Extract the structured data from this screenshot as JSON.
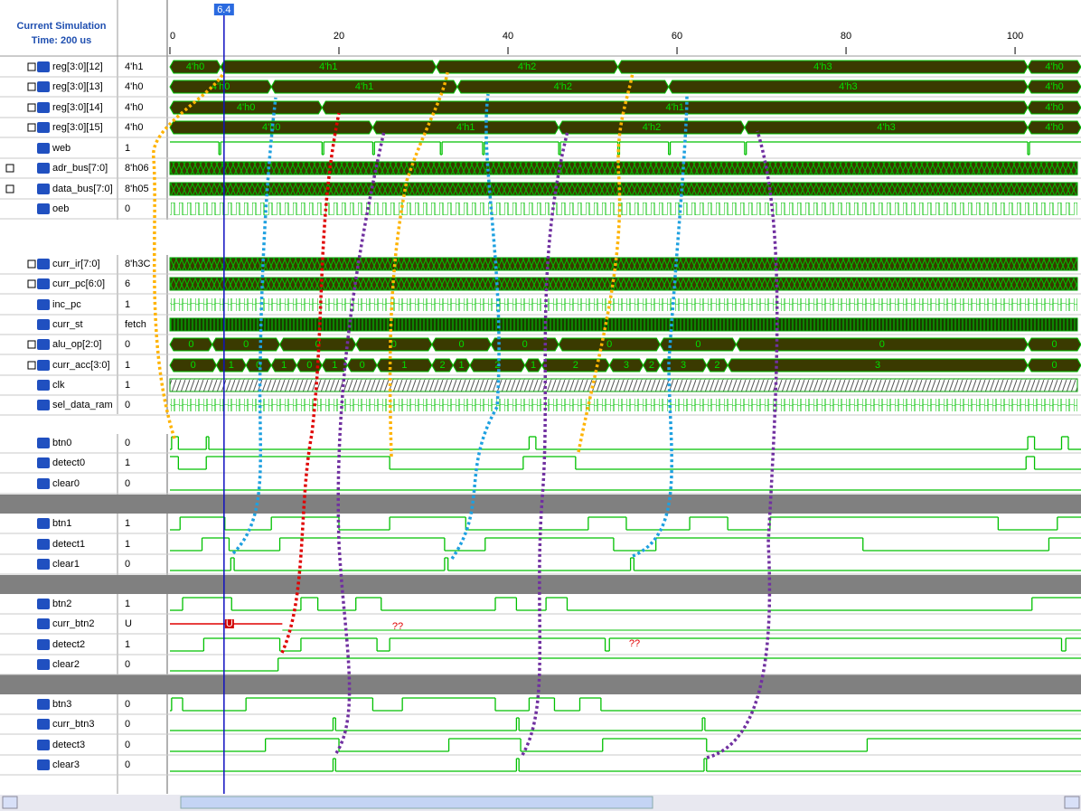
{
  "header": {
    "title": "Current Simulation",
    "time": "Time: 200 us"
  },
  "timeline": {
    "xlim": [
      0,
      107.8
    ],
    "ticks": [
      0,
      20,
      40,
      60,
      80,
      100
    ],
    "cursors": [
      6,
      6.4
    ]
  },
  "annotations": [
    "??",
    "??"
  ],
  "signals": [
    {
      "name": "reg[3:0][12]",
      "value": "4'h1",
      "kind": "bus",
      "segments": [
        {
          "start": 0,
          "label": "4'h0"
        },
        {
          "start": 6,
          "label": "4'h1"
        },
        {
          "start": 31.5,
          "label": "4'h2"
        },
        {
          "start": 53,
          "label": "4'h3"
        },
        {
          "start": 101.5,
          "label": "4'h0"
        }
      ]
    },
    {
      "name": "reg[3:0][13]",
      "value": "4'h0",
      "kind": "bus",
      "segments": [
        {
          "start": 0,
          "label": "4'h0"
        },
        {
          "start": 12,
          "label": "4'h1"
        },
        {
          "start": 34,
          "label": "4'h2"
        },
        {
          "start": 59,
          "label": "4'h3"
        },
        {
          "start": 101.5,
          "label": "4'h0"
        }
      ]
    },
    {
      "name": "reg[3:0][14]",
      "value": "4'h0",
      "kind": "bus",
      "segments": [
        {
          "start": 0,
          "label": "4'h0"
        },
        {
          "start": 18,
          "label": "4'h1"
        },
        {
          "start": 101.5,
          "label": "4'h0"
        }
      ]
    },
    {
      "name": "reg[3:0][15]",
      "value": "4'h0",
      "kind": "bus",
      "segments": [
        {
          "start": 0,
          "label": "4'h0"
        },
        {
          "start": 24,
          "label": "4'h1"
        },
        {
          "start": 46,
          "label": "4'h2"
        },
        {
          "start": 68,
          "label": "4'h3"
        },
        {
          "start": 101.5,
          "label": "4'h0"
        }
      ]
    },
    {
      "name": "web",
      "value": "1",
      "kind": "bit",
      "init": 1,
      "edges": [
        5.8,
        6,
        18,
        18.2,
        24,
        24.2,
        32,
        32.2,
        37,
        37.2,
        46,
        46.2,
        53,
        53.2,
        59,
        59.2,
        68,
        68.2,
        101.5,
        101.7
      ]
    },
    {
      "name": "adr_bus[7:0]",
      "value": "8'h06",
      "kind": "dense"
    },
    {
      "name": "data_bus[7:0]",
      "value": "8'h05",
      "kind": "dense"
    },
    {
      "name": "oeb",
      "value": "0",
      "kind": "pulse"
    },
    {
      "name": "curr_ir[7:0]",
      "value": "8'h3C",
      "kind": "dense"
    },
    {
      "name": "curr_pc[6:0]",
      "value": "6",
      "kind": "dense"
    },
    {
      "name": "inc_pc",
      "value": "1",
      "kind": "pulse"
    },
    {
      "name": "curr_st",
      "value": "fetch",
      "kind": "hatch"
    },
    {
      "name": "alu_op[2:0]",
      "value": "0",
      "kind": "bus",
      "segments": [
        {
          "start": 0,
          "label": "0"
        },
        {
          "start": 5,
          "label": "0"
        },
        {
          "start": 13,
          "label": "0"
        },
        {
          "start": 22,
          "label": "0"
        },
        {
          "start": 31,
          "label": "0"
        },
        {
          "start": 38,
          "label": "0"
        },
        {
          "start": 46,
          "label": "0"
        },
        {
          "start": 58,
          "label": "0"
        },
        {
          "start": 67,
          "label": "0"
        },
        {
          "start": 101.5,
          "label": "0"
        }
      ]
    },
    {
      "name": "curr_acc[3:0]",
      "value": "1",
      "kind": "bus",
      "segments": [
        {
          "start": 0,
          "label": "0"
        },
        {
          "start": 5.5,
          "label": "1"
        },
        {
          "start": 9,
          "label": "0"
        },
        {
          "start": 12,
          "label": "1"
        },
        {
          "start": 15,
          "label": "0"
        },
        {
          "start": 18,
          "label": "1"
        },
        {
          "start": 21,
          "label": "0"
        },
        {
          "start": 24.5,
          "label": "1"
        },
        {
          "start": 31,
          "label": "2"
        },
        {
          "start": 33.5,
          "label": "1"
        },
        {
          "start": 35.5,
          "label": "2"
        },
        {
          "start": 42,
          "label": "1"
        },
        {
          "start": 44,
          "label": "2"
        },
        {
          "start": 52,
          "label": "3"
        },
        {
          "start": 56,
          "label": "2"
        },
        {
          "start": 58,
          "label": "3"
        },
        {
          "start": 63.5,
          "label": "2"
        },
        {
          "start": 66,
          "label": "3"
        },
        {
          "start": 101.5,
          "label": "0"
        }
      ]
    },
    {
      "name": "clk",
      "value": "1",
      "kind": "hatch"
    },
    {
      "name": "sel_data_ram",
      "value": "0",
      "kind": "pulse"
    },
    {
      "name": "btn0",
      "value": "0",
      "kind": "bit",
      "init": 0,
      "edges": [
        0.2,
        1,
        4.3,
        4.6,
        42.5,
        43.3,
        101.5,
        102.3,
        105.5,
        106.3
      ]
    },
    {
      "name": "detect0",
      "value": "1",
      "kind": "bit",
      "init": 1,
      "edges": [
        1,
        4.3,
        26,
        41.8,
        48,
        101.3,
        102.3
      ]
    },
    {
      "name": "clear0",
      "value": "0",
      "kind": "bit",
      "init": 0,
      "edges": []
    },
    {
      "name": "btn1",
      "value": "1",
      "kind": "bit",
      "init": 0,
      "edges": [
        1.2,
        6.5,
        12,
        20,
        26,
        35,
        49.5,
        54,
        61.5,
        66,
        71,
        98,
        105
      ]
    },
    {
      "name": "detect1",
      "value": "1",
      "kind": "bit",
      "init": 0,
      "edges": [
        3.8,
        7,
        13,
        32.5,
        37.3,
        52.5,
        57.5,
        82,
        104
      ]
    },
    {
      "name": "clear1",
      "value": "0",
      "kind": "bit",
      "init": 0,
      "edges": [
        7.2,
        7.6,
        32.5,
        32.9,
        54.5,
        54.9
      ]
    },
    {
      "name": "btn2",
      "value": "1",
      "kind": "bit",
      "init": 0,
      "edges": [
        1.5,
        7.3,
        15.5,
        17.5,
        22,
        25,
        38.5,
        41,
        44.5,
        47,
        102
      ]
    },
    {
      "name": "curr_btn2",
      "value": "U",
      "kind": "undef",
      "until": 13.3,
      "marker": "U"
    },
    {
      "name": "detect2",
      "value": "1",
      "kind": "bit",
      "init": 0,
      "edges": [
        4,
        13,
        15.5,
        24.5,
        26,
        51.5,
        52,
        105.5,
        106
      ]
    },
    {
      "name": "clear2",
      "value": "0",
      "kind": "bit",
      "init": 0,
      "edges": [
        12.8
      ]
    },
    {
      "name": "btn3",
      "value": "0",
      "kind": "bit",
      "init": 0,
      "edges": [
        0.2,
        1.5,
        9,
        24,
        27.5,
        38.5,
        42.5,
        45.5,
        48.5,
        51
      ]
    },
    {
      "name": "curr_btn3",
      "value": "0",
      "kind": "bit",
      "init": 0,
      "edges": [
        19.3,
        19.6,
        41,
        41.3,
        63,
        63.3
      ]
    },
    {
      "name": "detect3",
      "value": "0",
      "kind": "bit",
      "init": 0,
      "edges": [
        11.3,
        20,
        33,
        41.5,
        51.2,
        63.5,
        82.5
      ]
    },
    {
      "name": "clear3",
      "value": "0",
      "kind": "bit",
      "init": 0,
      "edges": [
        19.3,
        19.6,
        41,
        41.3,
        63.2,
        63.5
      ]
    }
  ]
}
